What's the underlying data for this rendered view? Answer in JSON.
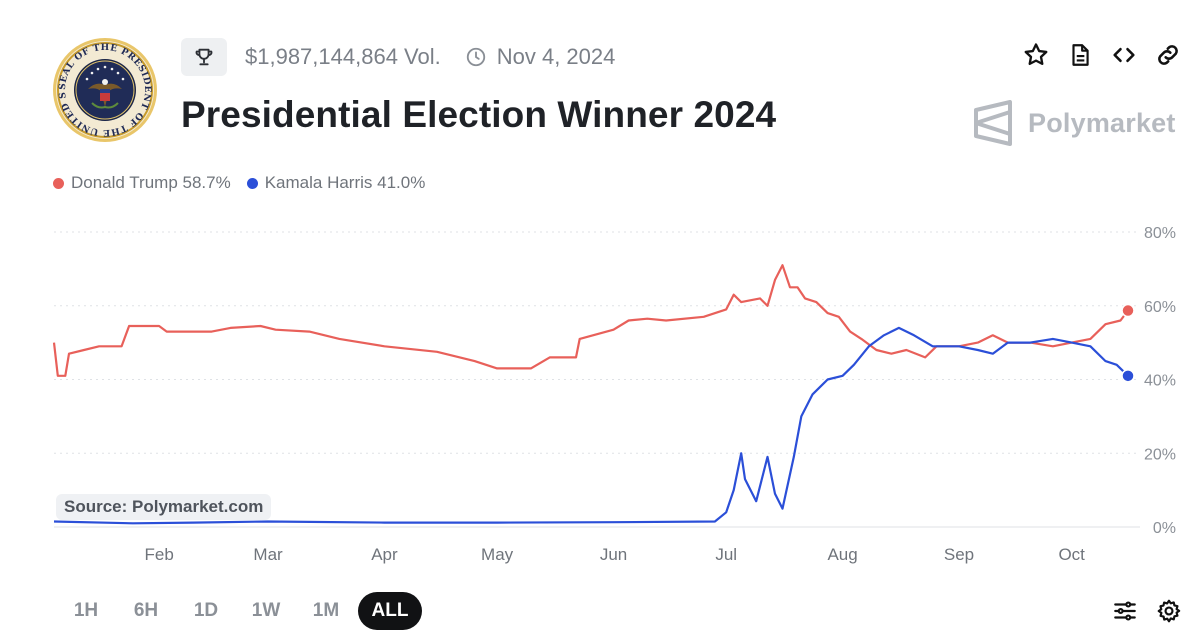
{
  "header": {
    "volume": "$1,987,144,864 Vol.",
    "end_date": "Nov 4, 2024",
    "title": "Presidential Election Winner 2024",
    "brand": "Polymarket"
  },
  "seal": {
    "text": "SEAL OF THE PRESIDENT OF THE UNITED STATES"
  },
  "icons": {
    "trophy": "trophy-icon",
    "clock": "clock-icon",
    "actions": [
      "star-icon",
      "document-icon",
      "embed-code-icon",
      "link-icon"
    ],
    "tools": [
      "sliders-icon",
      "gear-icon"
    ]
  },
  "legend": [
    {
      "label": "Donald Trump 58.7%",
      "color": "#e8605a"
    },
    {
      "label": "Kamala Harris 41.0%",
      "color": "#2b4fd8"
    }
  ],
  "source_label": "Source: Polymarket.com",
  "time_ranges": [
    "1H",
    "6H",
    "1D",
    "1W",
    "1M",
    "ALL"
  ],
  "active_range": "ALL",
  "chart_data": {
    "type": "line",
    "x_tick_labels": [
      "Feb",
      "Mar",
      "Apr",
      "May",
      "Jun",
      "Jul",
      "Aug",
      "Sep",
      "Oct"
    ],
    "x_ticks": [
      "2024-02-01",
      "2024-03-01",
      "2024-04-01",
      "2024-05-01",
      "2024-06-01",
      "2024-07-01",
      "2024-08-01",
      "2024-09-01",
      "2024-10-01"
    ],
    "x_range": [
      "2024-01-04",
      "2024-10-16"
    ],
    "y_tick_labels": [
      "80%",
      "60%",
      "40%",
      "20%",
      "0%"
    ],
    "ylim": [
      0,
      80
    ],
    "y_axis_position": "right",
    "grid": "horizontal dotted",
    "legend_position": "top-left",
    "series": [
      {
        "name": "Donald Trump",
        "color": "#e8605a",
        "points": [
          [
            "2024-01-04",
            50
          ],
          [
            "2024-01-05",
            41
          ],
          [
            "2024-01-07",
            41
          ],
          [
            "2024-01-08",
            47
          ],
          [
            "2024-01-12",
            48
          ],
          [
            "2024-01-16",
            49
          ],
          [
            "2024-01-22",
            49
          ],
          [
            "2024-01-24",
            54.5
          ],
          [
            "2024-02-01",
            54.5
          ],
          [
            "2024-02-03",
            53
          ],
          [
            "2024-02-15",
            53
          ],
          [
            "2024-02-20",
            54
          ],
          [
            "2024-02-28",
            54.5
          ],
          [
            "2024-03-03",
            53.5
          ],
          [
            "2024-03-12",
            53
          ],
          [
            "2024-03-20",
            51
          ],
          [
            "2024-04-01",
            49
          ],
          [
            "2024-04-15",
            47.5
          ],
          [
            "2024-04-25",
            45
          ],
          [
            "2024-05-01",
            43
          ],
          [
            "2024-05-10",
            43
          ],
          [
            "2024-05-15",
            46
          ],
          [
            "2024-05-22",
            46
          ],
          [
            "2024-05-23",
            51
          ],
          [
            "2024-06-01",
            53.5
          ],
          [
            "2024-06-05",
            56
          ],
          [
            "2024-06-10",
            56.5
          ],
          [
            "2024-06-15",
            56
          ],
          [
            "2024-06-25",
            57
          ],
          [
            "2024-07-01",
            59
          ],
          [
            "2024-07-03",
            63
          ],
          [
            "2024-07-05",
            61
          ],
          [
            "2024-07-10",
            62
          ],
          [
            "2024-07-12",
            60
          ],
          [
            "2024-07-14",
            67
          ],
          [
            "2024-07-16",
            71
          ],
          [
            "2024-07-18",
            65
          ],
          [
            "2024-07-20",
            65
          ],
          [
            "2024-07-22",
            62
          ],
          [
            "2024-07-25",
            61
          ],
          [
            "2024-07-28",
            58
          ],
          [
            "2024-07-31",
            57
          ],
          [
            "2024-08-03",
            53
          ],
          [
            "2024-08-06",
            51
          ],
          [
            "2024-08-10",
            48
          ],
          [
            "2024-08-14",
            47
          ],
          [
            "2024-08-18",
            48
          ],
          [
            "2024-08-23",
            46
          ],
          [
            "2024-08-26",
            49
          ],
          [
            "2024-09-01",
            49
          ],
          [
            "2024-09-06",
            50
          ],
          [
            "2024-09-10",
            52
          ],
          [
            "2024-09-14",
            50
          ],
          [
            "2024-09-20",
            50
          ],
          [
            "2024-09-26",
            49
          ],
          [
            "2024-10-01",
            50
          ],
          [
            "2024-10-06",
            51
          ],
          [
            "2024-10-10",
            55
          ],
          [
            "2024-10-14",
            56
          ],
          [
            "2024-10-16",
            58.7
          ]
        ]
      },
      {
        "name": "Kamala Harris",
        "color": "#2b4fd8",
        "points": [
          [
            "2024-01-04",
            1.5
          ],
          [
            "2024-01-25",
            1
          ],
          [
            "2024-02-10",
            1.2
          ],
          [
            "2024-03-01",
            1.5
          ],
          [
            "2024-04-01",
            1.2
          ],
          [
            "2024-05-01",
            1.2
          ],
          [
            "2024-06-01",
            1.3
          ],
          [
            "2024-06-28",
            1.5
          ],
          [
            "2024-07-01",
            4
          ],
          [
            "2024-07-03",
            10
          ],
          [
            "2024-07-05",
            20
          ],
          [
            "2024-07-06",
            13
          ],
          [
            "2024-07-09",
            7
          ],
          [
            "2024-07-12",
            19
          ],
          [
            "2024-07-14",
            9
          ],
          [
            "2024-07-16",
            5
          ],
          [
            "2024-07-19",
            19
          ],
          [
            "2024-07-21",
            30
          ],
          [
            "2024-07-24",
            36
          ],
          [
            "2024-07-28",
            40
          ],
          [
            "2024-08-01",
            41
          ],
          [
            "2024-08-04",
            44
          ],
          [
            "2024-08-08",
            49
          ],
          [
            "2024-08-12",
            52
          ],
          [
            "2024-08-16",
            54
          ],
          [
            "2024-08-20",
            52
          ],
          [
            "2024-08-25",
            49
          ],
          [
            "2024-09-01",
            49
          ],
          [
            "2024-09-06",
            48
          ],
          [
            "2024-09-10",
            47
          ],
          [
            "2024-09-14",
            50
          ],
          [
            "2024-09-20",
            50
          ],
          [
            "2024-09-26",
            51
          ],
          [
            "2024-10-01",
            50
          ],
          [
            "2024-10-06",
            49
          ],
          [
            "2024-10-10",
            45
          ],
          [
            "2024-10-13",
            44
          ],
          [
            "2024-10-16",
            41
          ]
        ]
      }
    ]
  }
}
